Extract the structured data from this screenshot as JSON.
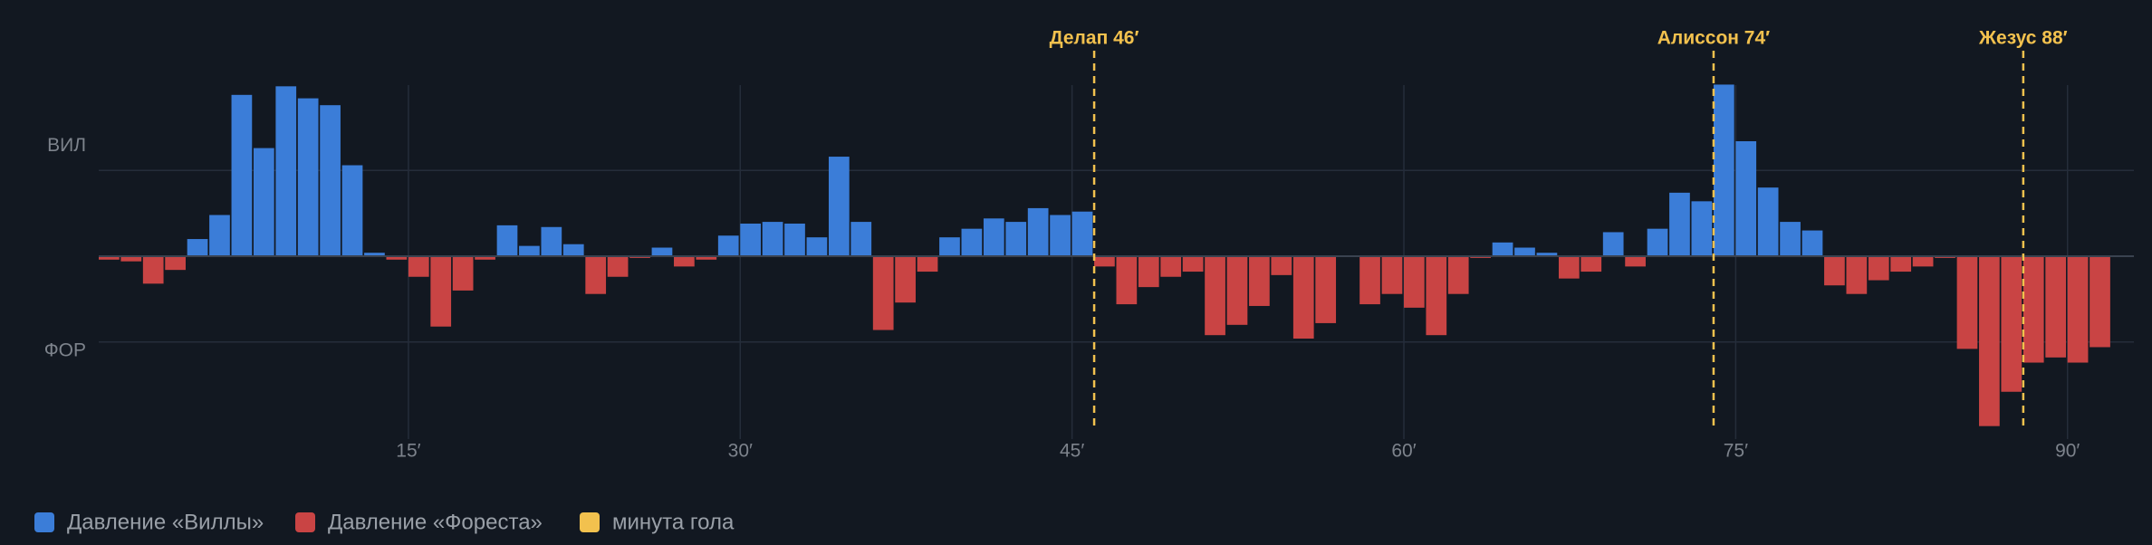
{
  "chart_data": {
    "type": "momentum",
    "x": [
      1,
      2,
      3,
      4,
      5,
      6,
      7,
      8,
      9,
      10,
      11,
      12,
      13,
      14,
      15,
      16,
      17,
      18,
      19,
      20,
      21,
      22,
      23,
      24,
      25,
      26,
      27,
      28,
      29,
      30,
      31,
      32,
      33,
      34,
      35,
      36,
      37,
      38,
      39,
      40,
      41,
      42,
      43,
      44,
      45,
      46,
      47,
      48,
      49,
      50,
      51,
      52,
      53,
      54,
      55,
      56,
      57,
      58,
      59,
      60,
      61,
      62,
      63,
      64,
      65,
      66,
      67,
      68,
      69,
      70,
      71,
      72,
      73,
      74,
      75,
      76,
      77,
      78,
      79,
      80,
      81,
      82,
      83,
      84,
      85,
      86,
      87,
      88,
      89,
      90,
      91
    ],
    "values": [
      -2,
      -3,
      -16,
      -8,
      10,
      24,
      94,
      63,
      99,
      92,
      88,
      53,
      2,
      -2,
      -12,
      -41,
      -20,
      -2,
      18,
      6,
      17,
      7,
      -22,
      -12,
      -1,
      5,
      -6,
      -2,
      12,
      19,
      20,
      19,
      11,
      58,
      20,
      -43,
      -27,
      -9,
      11,
      16,
      22,
      20,
      28,
      24,
      26,
      -6,
      -28,
      -18,
      -12,
      -9,
      -46,
      -40,
      -29,
      -11,
      -48,
      -39,
      0,
      -28,
      -22,
      -30,
      -46,
      -22,
      -1,
      8,
      5,
      2,
      -13,
      -9,
      14,
      -6,
      16,
      37,
      32,
      100,
      67,
      40,
      20,
      15,
      -17,
      -22,
      -14,
      -9,
      -6,
      -1,
      -54,
      -99,
      -79,
      -62,
      -59,
      -62,
      -53
    ],
    "series": [
      {
        "name": "Давление «Виллы»",
        "color": "#3b7dd8"
      },
      {
        "name": "Давление «Фореста»",
        "color": "#c94444"
      }
    ],
    "goals": {
      "name": "минута гола",
      "color": "#f2c14e",
      "items": [
        {
          "minute": 46,
          "label": "Делап 46′"
        },
        {
          "minute": 74,
          "label": "Алиссон 74′"
        },
        {
          "minute": 88,
          "label": "Жезус 88′"
        }
      ]
    },
    "xlim": [
      1,
      93
    ],
    "xticks": [
      {
        "value": 15,
        "label": "15′"
      },
      {
        "value": 30,
        "label": "30′"
      },
      {
        "value": 45,
        "label": "45′"
      },
      {
        "value": 60,
        "label": "60′"
      },
      {
        "value": 75,
        "label": "75′"
      },
      {
        "value": 90,
        "label": "90′"
      }
    ],
    "ylim": [
      -115,
      115
    ],
    "yticks": [
      {
        "value": 50,
        "label": "ВИЛ"
      },
      {
        "value": -50,
        "label": "ФОР"
      }
    ],
    "grid": true
  }
}
